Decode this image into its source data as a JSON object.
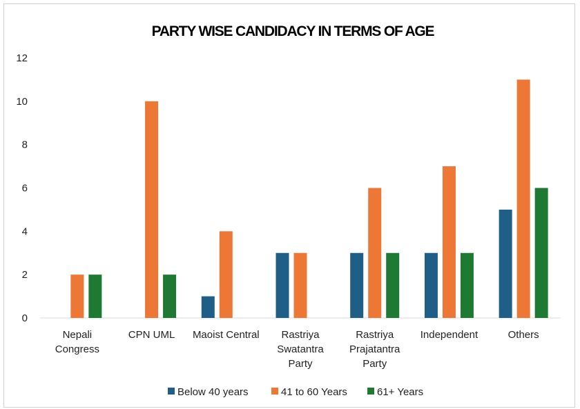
{
  "chart_data": {
    "type": "bar",
    "title": "PARTY WISE CANDIDACY IN TERMS OF AGE",
    "xlabel": "",
    "ylabel": "",
    "ylim": [
      0,
      12
    ],
    "yticks": [
      "0",
      "2",
      "4",
      "6",
      "8",
      "10",
      "12"
    ],
    "grid": false,
    "legend_position": "bottom",
    "categories": [
      [
        "Nepali",
        "Congress"
      ],
      [
        "CPN UML"
      ],
      [
        "Maoist Central"
      ],
      [
        "Rastriya",
        "Swatantra",
        "Party"
      ],
      [
        "Rastriya",
        "Prajatantra",
        "Party"
      ],
      [
        "Independent"
      ],
      [
        "Others"
      ]
    ],
    "series": [
      {
        "name": "Below 40 years",
        "color": "#1f5f87",
        "values": [
          0,
          0,
          1,
          3,
          3,
          3,
          5
        ]
      },
      {
        "name": "41 to 60 Years",
        "color": "#ed7836",
        "values": [
          2,
          10,
          4,
          3,
          6,
          7,
          11
        ]
      },
      {
        "name": "61+ Years",
        "color": "#1e7a32",
        "values": [
          2,
          2,
          0,
          0,
          3,
          3,
          6
        ]
      }
    ]
  }
}
